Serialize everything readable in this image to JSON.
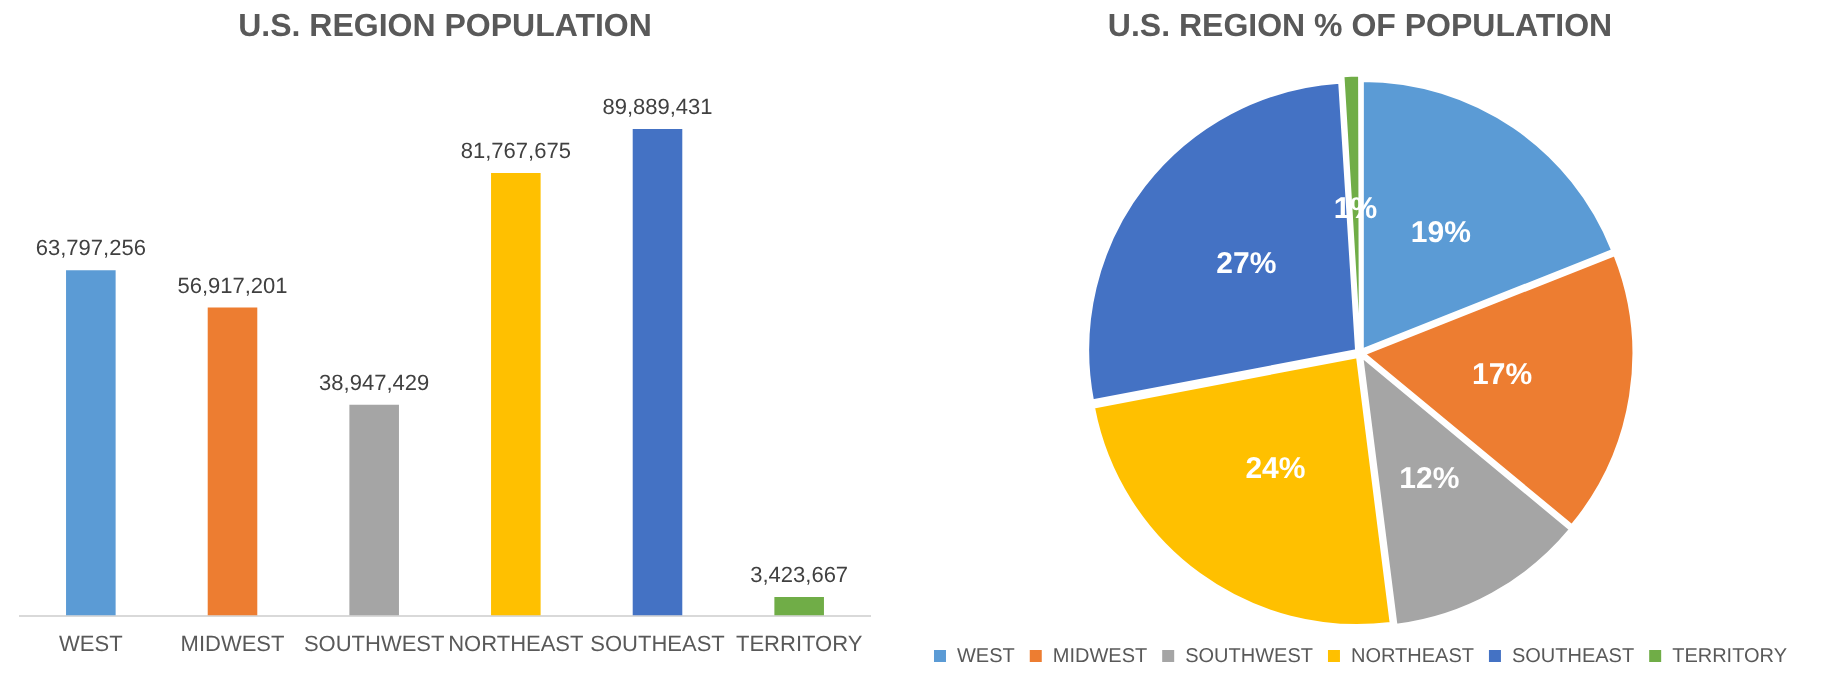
{
  "chart_data": [
    {
      "type": "bar",
      "title": "U.S. REGION POPULATION",
      "categories": [
        "WEST",
        "MIDWEST",
        "SOUTHWEST",
        "NORTHEAST",
        "SOUTHEAST",
        "TERRITORY"
      ],
      "values": [
        63797256,
        56917201,
        38947429,
        81767675,
        89889431,
        3423667
      ],
      "colors": [
        "#5b9bd5",
        "#ed7d31",
        "#a5a5a5",
        "#ffc000",
        "#4472c4",
        "#70ad47"
      ],
      "value_labels": [
        "63,797,256",
        "56,917,201",
        "38,947,429",
        "81,767,675",
        "89,889,431",
        "3,423,667"
      ],
      "grid": false,
      "legend": false,
      "tick_labels": "x"
    },
    {
      "type": "pie",
      "title": "U.S. REGION % OF POPULATION",
      "categories": [
        "WEST",
        "MIDWEST",
        "SOUTHWEST",
        "NORTHEAST",
        "SOUTHEAST",
        "TERRITORY"
      ],
      "values": [
        19,
        17,
        12,
        24,
        27,
        1
      ],
      "value_labels": [
        "19%",
        "17%",
        "12%",
        "24%",
        "27%",
        "1%"
      ],
      "colors": [
        "#5b9bd5",
        "#ed7d31",
        "#a5a5a5",
        "#ffc000",
        "#4472c4",
        "#70ad47"
      ],
      "legend": "bottom"
    }
  ]
}
